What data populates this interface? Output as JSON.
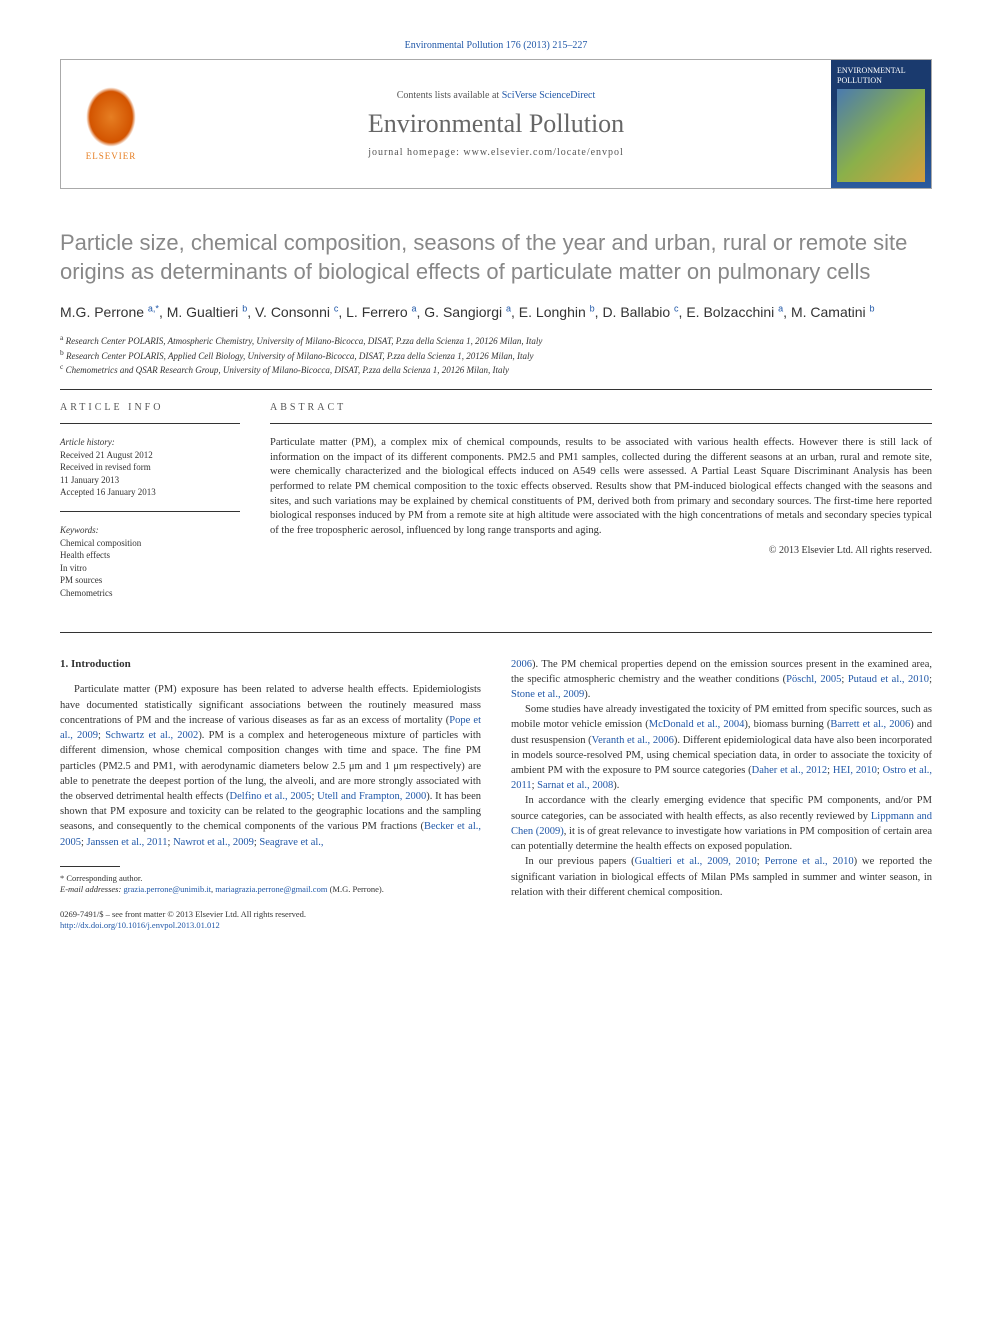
{
  "citation": "Environmental Pollution 176 (2013) 215–227",
  "header": {
    "contents_prefix": "Contents lists available at ",
    "contents_link": "SciVerse ScienceDirect",
    "journal": "Environmental Pollution",
    "homepage_prefix": "journal homepage: ",
    "homepage": "www.elsevier.com/locate/envpol",
    "publisher": "ELSEVIER",
    "cover_title": "ENVIRONMENTAL POLLUTION"
  },
  "title": "Particle size, chemical composition, seasons of the year and urban, rural or remote site origins as determinants of biological effects of particulate matter on pulmonary cells",
  "authors_html": "M.G. Perrone <sup>a,*</sup>, M. Gualtieri <sup>b</sup>, V. Consonni <sup>c</sup>, L. Ferrero <sup>a</sup>, G. Sangiorgi <sup>a</sup>, E. Longhin <sup>b</sup>, D. Ballabio <sup>c</sup>, E. Bolzacchini <sup>a</sup>, M. Camatini <sup>b</sup>",
  "affiliations": [
    "a Research Center POLARIS, Atmospheric Chemistry, University of Milano-Bicocca, DISAT, P.zza della Scienza 1, 20126 Milan, Italy",
    "b Research Center POLARIS, Applied Cell Biology, University of Milano-Bicocca, DISAT, P.zza della Scienza 1, 20126 Milan, Italy",
    "c Chemometrics and QSAR Research Group, University of Milano-Bicocca, DISAT, P.zza della Scienza 1, 20126 Milan, Italy"
  ],
  "article_info": {
    "label": "ARTICLE INFO",
    "history_label": "Article history:",
    "history": [
      "Received 21 August 2012",
      "Received in revised form",
      "11 January 2013",
      "Accepted 16 January 2013"
    ],
    "keywords_label": "Keywords:",
    "keywords": [
      "Chemical composition",
      "Health effects",
      "In vitro",
      "PM sources",
      "Chemometrics"
    ]
  },
  "abstract": {
    "label": "ABSTRACT",
    "text": "Particulate matter (PM), a complex mix of chemical compounds, results to be associated with various health effects. However there is still lack of information on the impact of its different components. PM2.5 and PM1 samples, collected during the different seasons at an urban, rural and remote site, were chemically characterized and the biological effects induced on A549 cells were assessed. A Partial Least Square Discriminant Analysis has been performed to relate PM chemical composition to the toxic effects observed. Results show that PM-induced biological effects changed with the seasons and sites, and such variations may be explained by chemical constituents of PM, derived both from primary and secondary sources. The first-time here reported biological responses induced by PM from a remote site at high altitude were associated with the high concentrations of metals and secondary species typical of the free tropospheric aerosol, influenced by long range transports and aging.",
    "copyright": "© 2013 Elsevier Ltd. All rights reserved."
  },
  "intro": {
    "heading": "1. Introduction",
    "p1_a": "Particulate matter (PM) exposure has been related to adverse health effects. Epidemiologists have documented statistically significant associations between the routinely measured mass concentrations of PM and the increase of various diseases as far as an excess of mortality (",
    "p1_ref1": "Pope et al., 2009",
    "p1_sep1": "; ",
    "p1_ref2": "Schwartz et al., 2002",
    "p1_b": "). PM is a complex and heterogeneous mixture of particles with different dimension, whose chemical composition changes with time and space. The fine PM particles (PM2.5 and PM1, with aerodynamic diameters below 2.5 μm and 1 μm respectively) are able to penetrate the deepest portion of the lung, the alveoli, and are more strongly associated with the observed detrimental health effects (",
    "p1_ref3": "Delfino et al., 2005",
    "p1_sep2": "; ",
    "p1_ref4": "Utell and Frampton, 2000",
    "p1_c": "). It has been shown that PM exposure and toxicity can be related to the geographic locations and the sampling seasons, and consequently to the chemical components of the various PM fractions (",
    "p1_ref5": "Becker et al., 2005",
    "p1_sep3": "; ",
    "p1_ref6": "Janssen et al., 2011",
    "p1_sep4": "; ",
    "p1_ref7": "Nawrot et al., 2009",
    "p1_sep5": "; ",
    "p1_ref8": "Seagrave et al.,",
    "p2_ref1": "2006",
    "p2_a": "). The PM chemical properties depend on the emission sources present in the examined area, the specific atmospheric chemistry and the weather conditions (",
    "p2_ref2": "Pöschl, 2005",
    "p2_sep1": "; ",
    "p2_ref3": "Putaud et al., 2010",
    "p2_sep2": "; ",
    "p2_ref4": "Stone et al., 2009",
    "p2_b": ").",
    "p3_a": "Some studies have already investigated the toxicity of PM emitted from specific sources, such as mobile motor vehicle emission (",
    "p3_ref1": "McDonald et al., 2004",
    "p3_b": "), biomass burning (",
    "p3_ref2": "Barrett et al., 2006",
    "p3_c": ") and dust resuspension (",
    "p3_ref3": "Veranth et al., 2006",
    "p3_d": "). Different epidemiological data have also been incorporated in models source-resolved PM, using chemical speciation data, in order to associate the toxicity of ambient PM with the exposure to PM source categories (",
    "p3_ref4": "Daher et al., 2012",
    "p3_sep1": "; ",
    "p3_ref5": "HEI, 2010",
    "p3_sep2": "; ",
    "p3_ref6": "Ostro et al., 2011",
    "p3_sep3": "; ",
    "p3_ref7": "Sarnat et al., 2008",
    "p3_e": ").",
    "p4_a": "In accordance with the clearly emerging evidence that specific PM components, and/or PM source categories, can be associated with health effects, as also recently reviewed by ",
    "p4_ref1": "Lippmann and Chen (2009)",
    "p4_b": ", it is of great relevance to investigate how variations in PM composition of certain area can potentially determine the health effects on exposed population.",
    "p5_a": "In our previous papers (",
    "p5_ref1": "Gualtieri et al., 2009, 2010",
    "p5_sep1": "; ",
    "p5_ref2": "Perrone et al., 2010",
    "p5_b": ") we reported the significant variation in biological effects of Milan PMs sampled in summer and winter season, in relation with their different chemical composition."
  },
  "footnotes": {
    "corr": "* Corresponding author.",
    "email_label": "E-mail addresses:",
    "email1": "grazia.perrone@unimib.it",
    "email_sep": ", ",
    "email2": "mariagrazia.perrone@gmail.com",
    "email_tail": " (M.G. Perrone)."
  },
  "bottom": {
    "issn": "0269-7491/$ – see front matter © 2013 Elsevier Ltd. All rights reserved.",
    "doi": "http://dx.doi.org/10.1016/j.envpol.2013.01.012"
  }
}
